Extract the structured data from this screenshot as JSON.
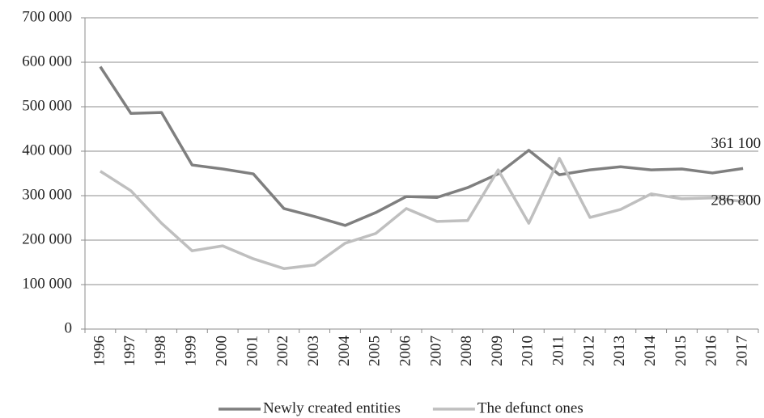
{
  "chart_data": {
    "type": "line",
    "categories": [
      "1996",
      "1997",
      "1998",
      "1999",
      "2000",
      "2001",
      "2002",
      "2003",
      "2004",
      "2005",
      "2006",
      "2007",
      "2008",
      "2009",
      "2010",
      "2011",
      "2012",
      "2013",
      "2014",
      "2015",
      "2016",
      "2017"
    ],
    "series": [
      {
        "name": "Newly created entities",
        "color": "#7f7f7f",
        "values": [
          590000,
          485000,
          487000,
          369000,
          360000,
          349000,
          271000,
          253000,
          233000,
          262000,
          298000,
          296000,
          318000,
          349000,
          402000,
          347000,
          358000,
          365000,
          358000,
          360000,
          351000,
          361100
        ],
        "value_labels": [
          null,
          null,
          null,
          null,
          null,
          null,
          null,
          null,
          null,
          null,
          null,
          null,
          null,
          null,
          null,
          null,
          null,
          null,
          null,
          null,
          null,
          "361 100"
        ]
      },
      {
        "name": "The defunct ones",
        "color": "#bfbfbf",
        "values": [
          355000,
          311000,
          238000,
          176000,
          187000,
          158000,
          136000,
          144000,
          193000,
          215000,
          271000,
          242000,
          244000,
          358000,
          238000,
          384000,
          251000,
          269000,
          304000,
          293000,
          295000,
          286800
        ],
        "value_labels": [
          null,
          null,
          null,
          null,
          null,
          null,
          null,
          null,
          null,
          null,
          null,
          null,
          null,
          null,
          null,
          null,
          null,
          null,
          null,
          null,
          null,
          "286 800"
        ]
      }
    ],
    "ylim": [
      0,
      700000
    ],
    "yticks": [
      0,
      {
        "value": 100000,
        "label": "100 000"
      },
      {
        "value": 200000,
        "label": "200 000"
      },
      {
        "value": 300000,
        "label": "300 000"
      },
      {
        "value": 400000,
        "label": "400 000"
      },
      {
        "value": 500000,
        "label": "500 000"
      },
      {
        "value": 600000,
        "label": "600 000"
      },
      {
        "value": 700000,
        "label": "700 000"
      }
    ],
    "grid": true,
    "legend": "bottom"
  }
}
